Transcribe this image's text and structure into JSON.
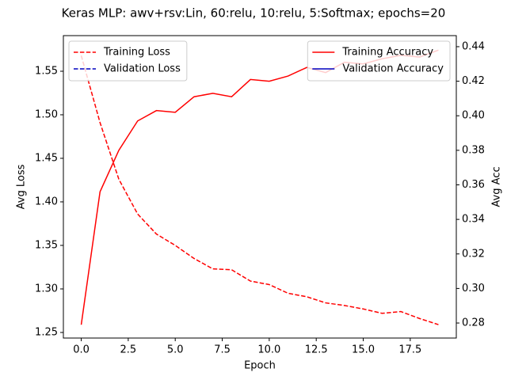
{
  "chart_data": {
    "type": "line",
    "title": "Keras MLP: awv+rsv:Lin, 60:relu, 10:relu, 5:Softmax; epochs=20",
    "x_label": "Epoch",
    "y_label": "Avg Loss",
    "y2_label": "Avg Acc",
    "x": [
      0,
      1,
      2,
      3,
      4,
      5,
      6,
      7,
      8,
      9,
      10,
      11,
      12,
      13,
      14,
      15,
      16,
      17,
      18,
      19
    ],
    "xlim": [
      -0.95,
      19.95
    ],
    "xticks": [
      {
        "value": 0,
        "label": "0.0"
      },
      2.5,
      {
        "value": 5,
        "label": "5.0"
      },
      7.5,
      {
        "value": 10,
        "label": "10.0"
      },
      12.5,
      {
        "value": 15,
        "label": "15.0"
      },
      17.5
    ],
    "ylim": [
      1.2436,
      1.5909
    ],
    "yticks": [
      1.25,
      {
        "value": 1.3,
        "label": "1.30"
      },
      1.35,
      {
        "value": 1.4,
        "label": "1.40"
      },
      1.45,
      {
        "value": 1.5,
        "label": "1.50"
      },
      1.55
    ],
    "y2lim": [
      0.2713,
      0.4464
    ],
    "y2ticks": [
      0.28,
      {
        "value": 0.3,
        "label": "0.30"
      },
      0.32,
      0.34,
      0.36,
      0.38,
      {
        "value": 0.4,
        "label": "0.40"
      },
      0.42,
      0.44
    ],
    "legend": "upper left",
    "legend2": "upper right",
    "series": [
      {
        "name": "Training Loss",
        "color": "#ff0000",
        "dash": true,
        "axis": "y",
        "values": [
          1.568,
          1.491,
          1.426,
          1.386,
          1.363,
          1.35,
          1.335,
          1.323,
          1.322,
          1.309,
          1.305,
          1.295,
          1.291,
          1.284,
          1.281,
          1.277,
          1.272,
          1.274,
          1.266,
          1.259
        ]
      },
      {
        "name": "Validation Loss",
        "color": "#0000bf",
        "dash": true,
        "axis": "y",
        "values": [
          null,
          null,
          null,
          null,
          null,
          null,
          null,
          null,
          null,
          null,
          null,
          null,
          null,
          null,
          null,
          null,
          null,
          null,
          null,
          null
        ]
      },
      {
        "name": "Training Accuracy",
        "color": "#ff0000",
        "dash": false,
        "axis": "y2",
        "values": [
          0.279,
          0.356,
          0.38,
          0.397,
          0.403,
          0.402,
          0.411,
          0.413,
          0.411,
          0.421,
          0.42,
          0.423,
          0.428,
          0.425,
          0.431,
          0.43,
          0.433,
          0.435,
          0.434,
          0.438
        ]
      },
      {
        "name": "Validation Accuracy",
        "color": "#0000bf",
        "dash": false,
        "axis": "y2",
        "values": [
          null,
          null,
          null,
          null,
          null,
          null,
          null,
          null,
          null,
          null,
          null,
          null,
          null,
          null,
          null,
          null,
          null,
          null,
          null,
          null
        ]
      }
    ]
  }
}
